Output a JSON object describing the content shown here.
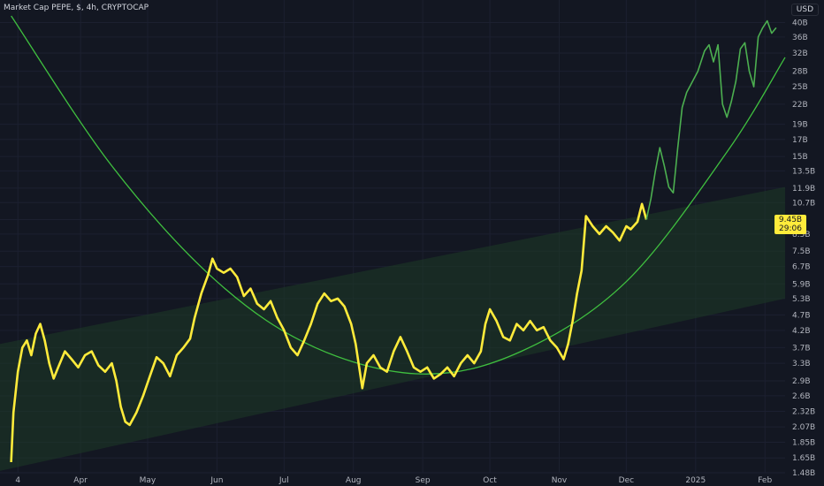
{
  "header": {
    "title": "Market Cap PEPE, $, 4h, CRYPTOCAP",
    "currency": "USD"
  },
  "price_tag": {
    "value": "9.45B",
    "countdown": "29:06"
  },
  "colors": {
    "background": "#131722",
    "price_line": "#ffeb3b",
    "price_line_recent": "#4caf50",
    "curve": "#3fbf3f",
    "channel_fill": "#1e3a26",
    "axis_text": "#b2b5be"
  },
  "chart_data": {
    "type": "line",
    "title": "Market Cap PEPE, $, 4h, CRYPTOCAP",
    "y_scale": "log",
    "y_unit": "USD (billions)",
    "y_ticks": [
      "40B",
      "36B",
      "32B",
      "28B",
      "25B",
      "22B",
      "19B",
      "17B",
      "15B",
      "13.5B",
      "11.9B",
      "10.7B",
      "9.45B",
      "8.5B",
      "7.5B",
      "6.7B",
      "5.9B",
      "5.3B",
      "4.7B",
      "4.2B",
      "3.7B",
      "3.3B",
      "2.9B",
      "2.6B",
      "2.32B",
      "2.07B",
      "1.85B",
      "1.65B",
      "1.48B"
    ],
    "y_tick_values": [
      40,
      36,
      32,
      28,
      25,
      22,
      19,
      17,
      15,
      13.5,
      11.9,
      10.7,
      9.45,
      8.5,
      7.5,
      6.7,
      5.9,
      5.3,
      4.7,
      4.2,
      3.7,
      3.3,
      2.9,
      2.6,
      2.32,
      2.07,
      1.85,
      1.65,
      1.48
    ],
    "x_ticks": [
      "4",
      "Apr",
      "May",
      "Jun",
      "Jul",
      "Aug",
      "Sep",
      "Oct",
      "Nov",
      "Dec",
      "2025",
      "Feb"
    ],
    "x_tick_dates": [
      "2024-03-04",
      "2024-04-01",
      "2024-05-01",
      "2024-06-01",
      "2024-07-01",
      "2024-08-01",
      "2024-09-01",
      "2024-10-01",
      "2024-11-01",
      "2024-12-01",
      "2025-01-01",
      "2025-02-01"
    ],
    "x_range": [
      "2024-02-25",
      "2025-02-10"
    ],
    "y_range": [
      1.48,
      42
    ],
    "series": [
      {
        "points": [
          [
            "2024-03-01",
            1.6
          ],
          [
            "2024-03-02",
            2.3
          ],
          [
            "2024-03-04",
            3.1
          ],
          [
            "2024-03-06",
            3.7
          ],
          [
            "2024-03-08",
            3.9
          ],
          [
            "2024-03-10",
            3.5
          ],
          [
            "2024-03-12",
            4.1
          ],
          [
            "2024-03-14",
            4.4
          ],
          [
            "2024-03-16",
            3.9
          ],
          [
            "2024-03-18",
            3.3
          ],
          [
            "2024-03-20",
            2.95
          ],
          [
            "2024-03-22",
            3.2
          ],
          [
            "2024-03-25",
            3.6
          ],
          [
            "2024-03-28",
            3.4
          ],
          [
            "2024-03-31",
            3.2
          ],
          [
            "2024-04-03",
            3.5
          ],
          [
            "2024-04-06",
            3.6
          ],
          [
            "2024-04-09",
            3.25
          ],
          [
            "2024-04-12",
            3.1
          ],
          [
            "2024-04-15",
            3.3
          ],
          [
            "2024-04-17",
            2.9
          ],
          [
            "2024-04-19",
            2.4
          ],
          [
            "2024-04-21",
            2.15
          ],
          [
            "2024-04-23",
            2.1
          ],
          [
            "2024-04-26",
            2.3
          ],
          [
            "2024-04-29",
            2.6
          ],
          [
            "2024-05-02",
            3.0
          ],
          [
            "2024-05-05",
            3.45
          ],
          [
            "2024-05-08",
            3.3
          ],
          [
            "2024-05-11",
            3.0
          ],
          [
            "2024-05-14",
            3.5
          ],
          [
            "2024-05-17",
            3.7
          ],
          [
            "2024-05-20",
            3.95
          ],
          [
            "2024-05-22",
            4.6
          ],
          [
            "2024-05-25",
            5.5
          ],
          [
            "2024-05-28",
            6.3
          ],
          [
            "2024-05-30",
            7.1
          ],
          [
            "2024-06-01",
            6.6
          ],
          [
            "2024-06-04",
            6.4
          ],
          [
            "2024-06-07",
            6.6
          ],
          [
            "2024-06-10",
            6.2
          ],
          [
            "2024-06-13",
            5.4
          ],
          [
            "2024-06-16",
            5.7
          ],
          [
            "2024-06-19",
            5.1
          ],
          [
            "2024-06-22",
            4.9
          ],
          [
            "2024-06-25",
            5.2
          ],
          [
            "2024-06-28",
            4.6
          ],
          [
            "2024-07-01",
            4.2
          ],
          [
            "2024-07-04",
            3.7
          ],
          [
            "2024-07-07",
            3.5
          ],
          [
            "2024-07-10",
            3.9
          ],
          [
            "2024-07-13",
            4.4
          ],
          [
            "2024-07-16",
            5.1
          ],
          [
            "2024-07-19",
            5.5
          ],
          [
            "2024-07-22",
            5.2
          ],
          [
            "2024-07-25",
            5.3
          ],
          [
            "2024-07-28",
            5.0
          ],
          [
            "2024-07-31",
            4.4
          ],
          [
            "2024-08-02",
            3.8
          ],
          [
            "2024-08-05",
            2.75
          ],
          [
            "2024-08-07",
            3.3
          ],
          [
            "2024-08-10",
            3.5
          ],
          [
            "2024-08-13",
            3.2
          ],
          [
            "2024-08-16",
            3.1
          ],
          [
            "2024-08-19",
            3.6
          ],
          [
            "2024-08-22",
            4.0
          ],
          [
            "2024-08-25",
            3.6
          ],
          [
            "2024-08-28",
            3.2
          ],
          [
            "2024-08-31",
            3.1
          ],
          [
            "2024-09-03",
            3.2
          ],
          [
            "2024-09-06",
            2.95
          ],
          [
            "2024-09-09",
            3.05
          ],
          [
            "2024-09-12",
            3.2
          ],
          [
            "2024-09-15",
            3.0
          ],
          [
            "2024-09-18",
            3.3
          ],
          [
            "2024-09-21",
            3.5
          ],
          [
            "2024-09-24",
            3.3
          ],
          [
            "2024-09-27",
            3.6
          ],
          [
            "2024-09-29",
            4.4
          ],
          [
            "2024-10-01",
            4.9
          ],
          [
            "2024-10-04",
            4.5
          ],
          [
            "2024-10-07",
            4.0
          ],
          [
            "2024-10-10",
            3.9
          ],
          [
            "2024-10-13",
            4.4
          ],
          [
            "2024-10-16",
            4.2
          ],
          [
            "2024-10-19",
            4.5
          ],
          [
            "2024-10-22",
            4.2
          ],
          [
            "2024-10-25",
            4.3
          ],
          [
            "2024-10-28",
            3.9
          ],
          [
            "2024-10-31",
            3.7
          ],
          [
            "2024-11-03",
            3.4
          ],
          [
            "2024-11-05",
            3.8
          ],
          [
            "2024-11-07",
            4.5
          ],
          [
            "2024-11-09",
            5.5
          ],
          [
            "2024-11-11",
            6.5
          ],
          [
            "2024-11-13",
            9.7
          ],
          [
            "2024-11-16",
            9.0
          ],
          [
            "2024-11-19",
            8.5
          ],
          [
            "2024-11-22",
            9.0
          ],
          [
            "2024-11-25",
            8.6
          ],
          [
            "2024-11-28",
            8.1
          ],
          [
            "2024-12-01",
            9.0
          ],
          [
            "2024-12-03",
            8.8
          ],
          [
            "2024-12-06",
            9.3
          ],
          [
            "2024-12-08",
            10.6
          ],
          [
            "2024-12-10",
            9.45
          ]
        ]
      },
      {
        "points": [
          [
            "2024-12-12",
            11.0
          ],
          [
            "2024-12-14",
            13.5
          ],
          [
            "2024-12-16",
            16.0
          ],
          [
            "2024-12-18",
            14.0
          ],
          [
            "2024-12-20",
            12.0
          ],
          [
            "2024-12-22",
            11.5
          ],
          [
            "2024-12-24",
            16.0
          ],
          [
            "2024-12-26",
            21.5
          ],
          [
            "2024-12-28",
            24.0
          ],
          [
            "2024-12-30",
            25.5
          ],
          [
            "2025-01-02",
            28.0
          ],
          [
            "2025-01-05",
            32.5
          ],
          [
            "2025-01-07",
            34.0
          ],
          [
            "2025-01-09",
            30.0
          ],
          [
            "2025-01-11",
            34.0
          ],
          [
            "2025-01-13",
            22.0
          ],
          [
            "2025-01-15",
            20.0
          ],
          [
            "2025-01-17",
            22.5
          ],
          [
            "2025-01-19",
            26.0
          ],
          [
            "2025-01-21",
            33.0
          ],
          [
            "2025-01-23",
            34.5
          ],
          [
            "2025-01-25",
            28.0
          ],
          [
            "2025-01-27",
            25.0
          ],
          [
            "2025-01-29",
            36.0
          ],
          [
            "2025-01-31",
            38.5
          ],
          [
            "2025-02-02",
            40.5
          ],
          [
            "2025-02-04",
            37.0
          ],
          [
            "2025-02-06",
            38.5
          ]
        ]
      }
    ],
    "overlays": [
      {
        "type": "curve",
        "points": [
          [
            "2024-03-01",
            42
          ],
          [
            "2024-04-15",
            14.0
          ],
          [
            "2024-06-01",
            6.0
          ],
          [
            "2024-07-15",
            3.7
          ],
          [
            "2024-09-01",
            3.05
          ],
          [
            "2024-10-15",
            3.6
          ],
          [
            "2024-12-01",
            6.0
          ],
          [
            "2025-01-15",
            15.5
          ],
          [
            "2025-02-10",
            31
          ]
        ]
      },
      {
        "type": "channel",
        "upper": [
          [
            "2024-02-25",
            3.8
          ],
          [
            "2025-02-10",
            12.0
          ]
        ],
        "lower": [
          [
            "2024-02-25",
            1.5
          ],
          [
            "2025-02-10",
            5.3
          ]
        ]
      }
    ],
    "grid": true,
    "legend": "none"
  }
}
